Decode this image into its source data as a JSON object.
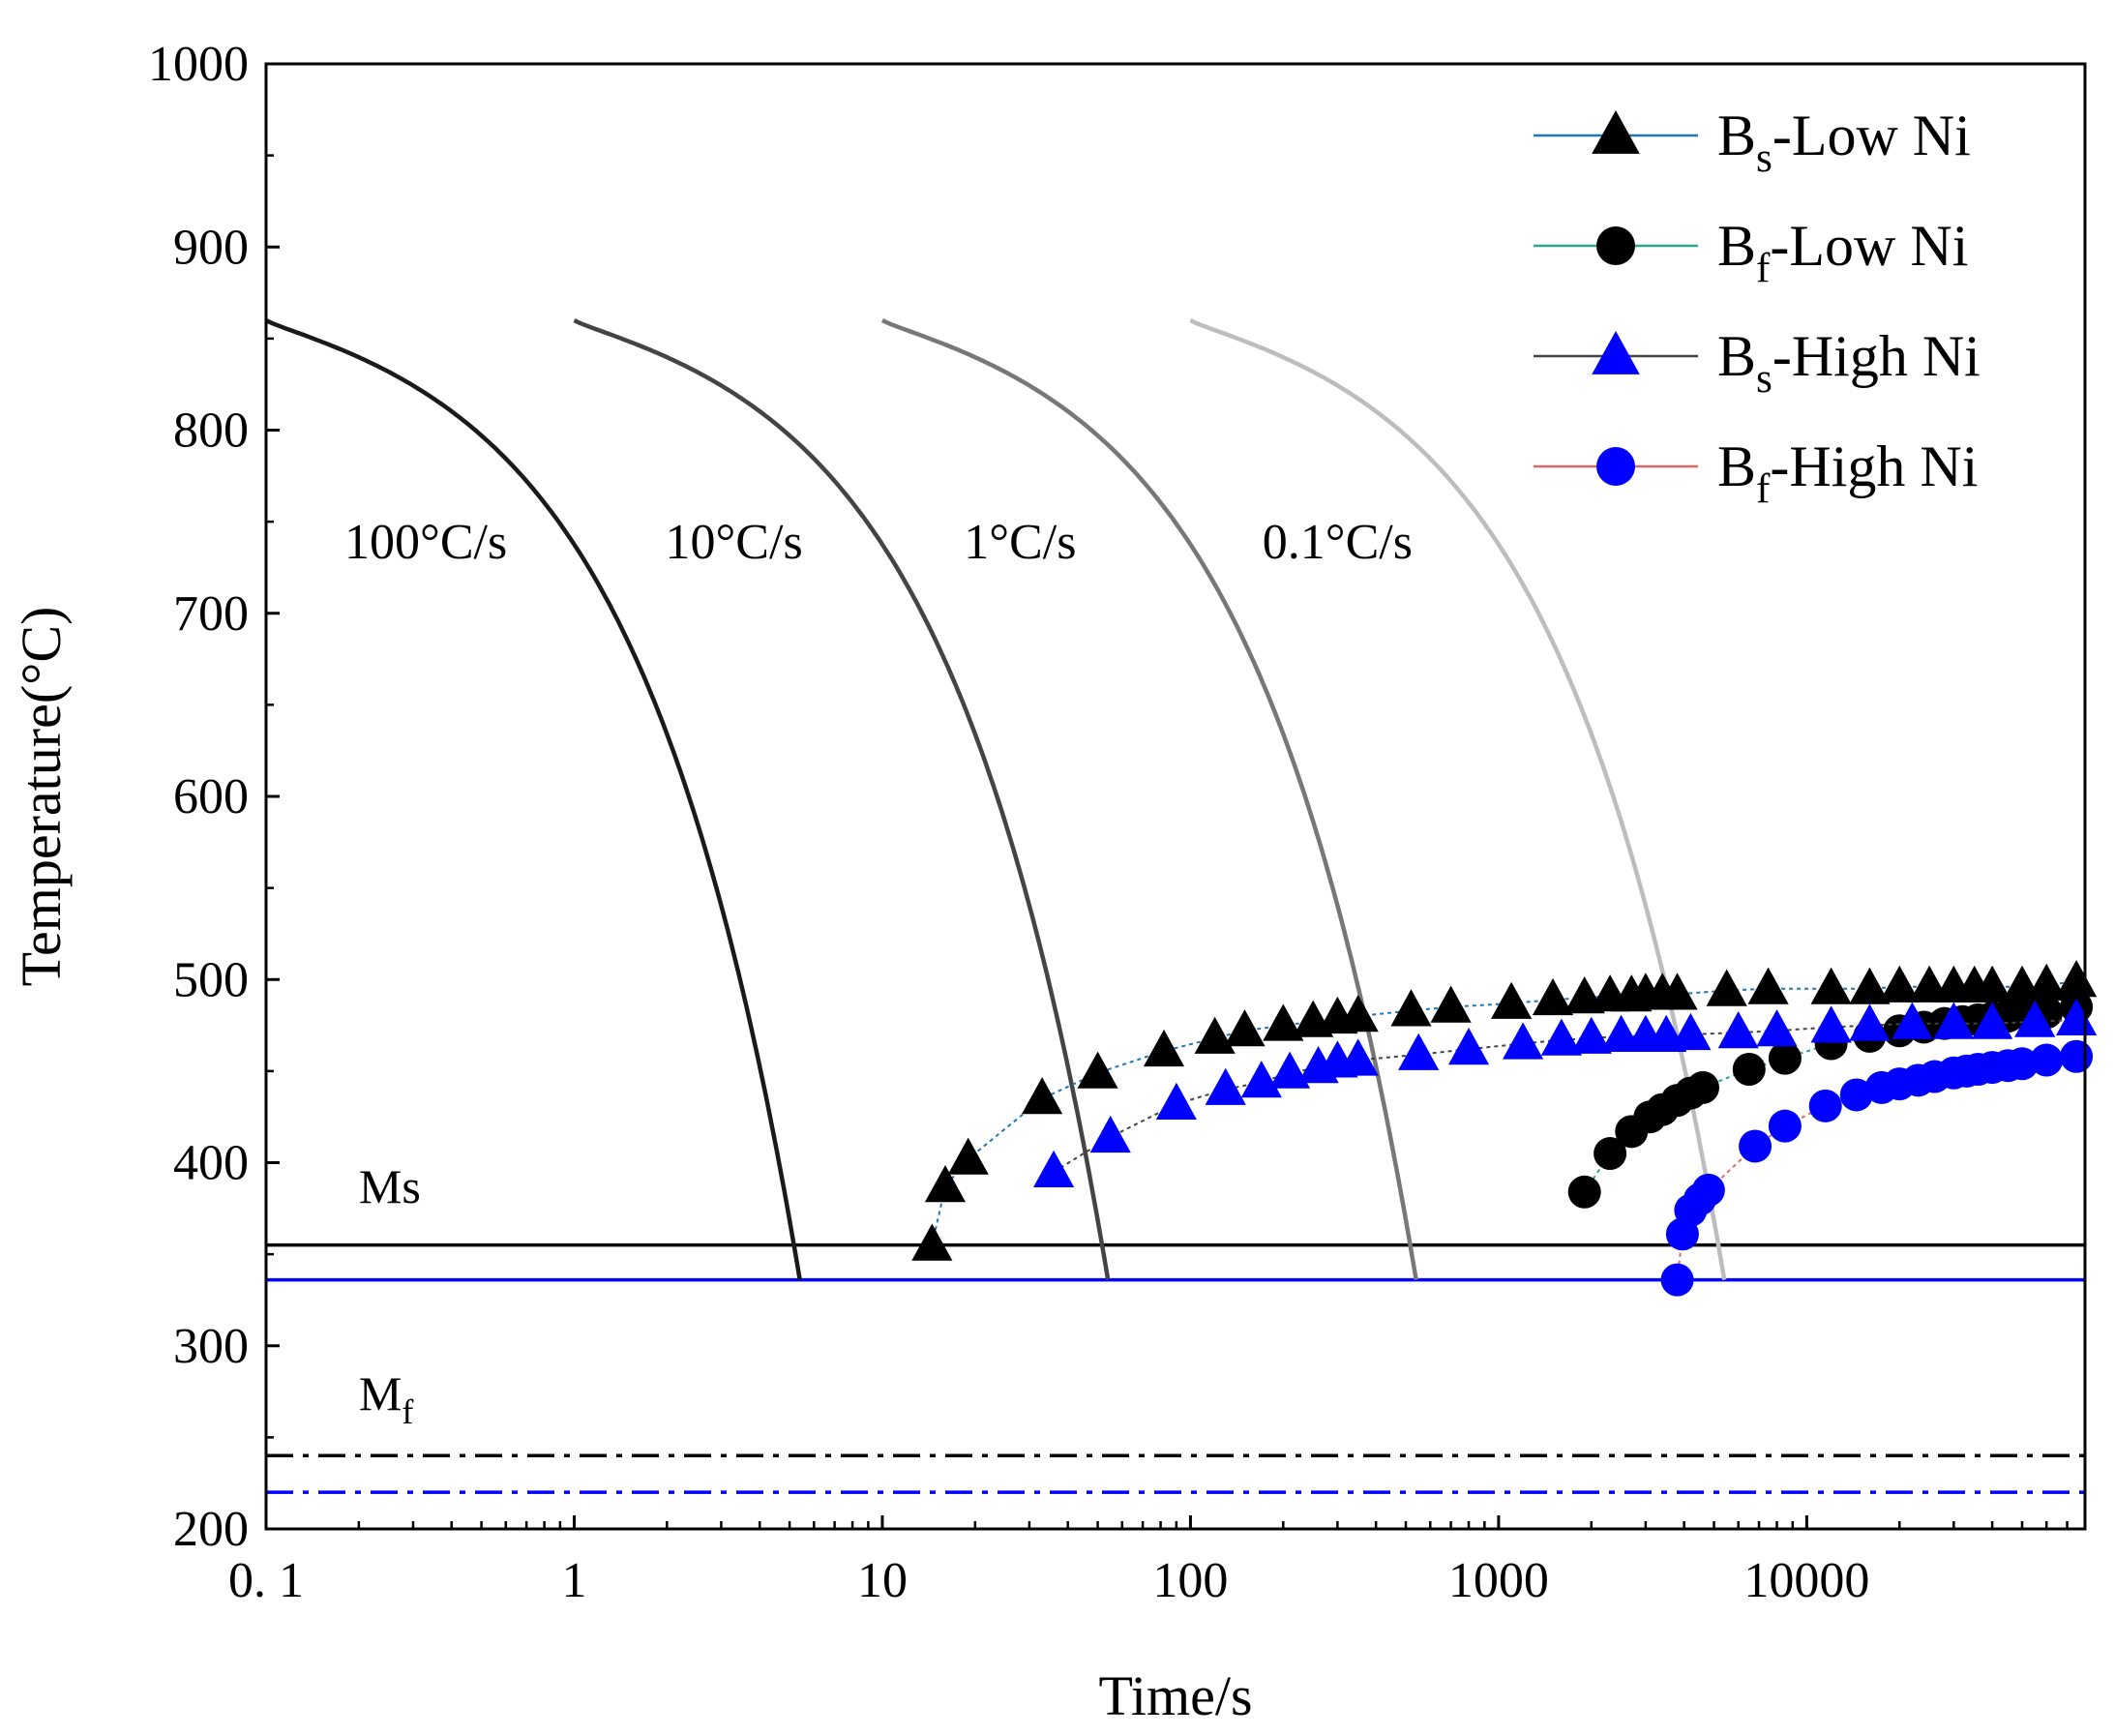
{
  "chart_data": {
    "type": "scatter",
    "title": "",
    "xlabel": "Time/s",
    "ylabel": "Temperature(°C)",
    "xscale": "log",
    "xlim": [
      0.1,
      80000
    ],
    "ylim": [
      200,
      1000
    ],
    "xticks": [
      {
        "value": 0.1,
        "label": "0. 1"
      },
      {
        "value": 1,
        "label": "1"
      },
      {
        "value": 10,
        "label": "10"
      },
      {
        "value": 100,
        "label": "100"
      },
      {
        "value": 1000,
        "label": "1000"
      },
      {
        "value": 10000,
        "label": "10000"
      }
    ],
    "yticks": [
      200,
      300,
      400,
      500,
      600,
      700,
      800,
      900,
      1000
    ],
    "legend_position": "top-right",
    "legend": [
      {
        "base": "B",
        "sub": "s",
        "rest": "-Low Ni",
        "marker": "triangle",
        "color": "#000000",
        "line_color": "#1f77b4"
      },
      {
        "base": "B",
        "sub": "f",
        "rest": "-Low Ni",
        "marker": "circle",
        "color": "#000000",
        "line_color": "#2ca58d"
      },
      {
        "base": "B",
        "sub": "s",
        "rest": "-High Ni",
        "marker": "triangle",
        "color": "#0000ff",
        "line_color": "#444444"
      },
      {
        "base": "B",
        "sub": "f",
        "rest": "-High Ni",
        "marker": "circle",
        "color": "#0000ff",
        "line_color": "#e06666"
      }
    ],
    "series": [
      {
        "name": "Bs-Low Ni",
        "marker": "triangle",
        "color": "#000000",
        "line_color": "#1f77b4",
        "points": [
          [
            14.5,
            355
          ],
          [
            16,
            387
          ],
          [
            19,
            402
          ],
          [
            33,
            435
          ],
          [
            50,
            449
          ],
          [
            82,
            461
          ],
          [
            120,
            468
          ],
          [
            150,
            472
          ],
          [
            200,
            475
          ],
          [
            250,
            477
          ],
          [
            300,
            479
          ],
          [
            350,
            480
          ],
          [
            520,
            483
          ],
          [
            700,
            485
          ],
          [
            1100,
            487
          ],
          [
            1500,
            489
          ],
          [
            1900,
            490
          ],
          [
            2300,
            491
          ],
          [
            2700,
            491
          ],
          [
            3000,
            492
          ],
          [
            3400,
            492
          ],
          [
            3800,
            492
          ],
          [
            5500,
            494
          ],
          [
            7500,
            495
          ],
          [
            12000,
            495
          ],
          [
            16000,
            495
          ],
          [
            20000,
            496
          ],
          [
            25000,
            496
          ],
          [
            30000,
            496
          ],
          [
            35000,
            496
          ],
          [
            40000,
            496
          ],
          [
            50000,
            496
          ],
          [
            60000,
            497
          ],
          [
            75000,
            499
          ]
        ]
      },
      {
        "name": "Bf-Low Ni",
        "marker": "circle",
        "color": "#000000",
        "line_color": "#2ca58d",
        "points": [
          [
            1900,
            384
          ],
          [
            2300,
            405
          ],
          [
            2700,
            417
          ],
          [
            3100,
            425
          ],
          [
            3400,
            429
          ],
          [
            3800,
            434
          ],
          [
            4200,
            438
          ],
          [
            4600,
            441
          ],
          [
            6500,
            451
          ],
          [
            8500,
            457
          ],
          [
            12000,
            465
          ],
          [
            16000,
            469
          ],
          [
            20000,
            472
          ],
          [
            24000,
            474
          ],
          [
            28000,
            476
          ],
          [
            32000,
            477
          ],
          [
            36000,
            478
          ],
          [
            40000,
            479
          ],
          [
            45000,
            480
          ],
          [
            52000,
            481
          ],
          [
            60000,
            482
          ],
          [
            75000,
            485
          ]
        ]
      },
      {
        "name": "Bs-High Ni",
        "marker": "triangle",
        "color": "#0000ff",
        "line_color": "#444444",
        "points": [
          [
            36,
            395
          ],
          [
            55,
            414
          ],
          [
            90,
            432
          ],
          [
            130,
            440
          ],
          [
            170,
            444
          ],
          [
            210,
            449
          ],
          [
            260,
            452
          ],
          [
            300,
            455
          ],
          [
            350,
            456
          ],
          [
            550,
            459
          ],
          [
            800,
            462
          ],
          [
            1200,
            465
          ],
          [
            1600,
            467
          ],
          [
            2000,
            468
          ],
          [
            2500,
            469
          ],
          [
            3000,
            469
          ],
          [
            3500,
            469
          ],
          [
            4200,
            470
          ],
          [
            6000,
            471
          ],
          [
            8000,
            472
          ],
          [
            12000,
            474
          ],
          [
            16000,
            475
          ],
          [
            22000,
            476
          ],
          [
            30000,
            476
          ],
          [
            40000,
            476
          ],
          [
            55000,
            477
          ],
          [
            75000,
            478
          ]
        ]
      },
      {
        "name": "Bf-High Ni",
        "marker": "circle",
        "color": "#0000ff",
        "line_color": "#e06666",
        "points": [
          [
            3800,
            336
          ],
          [
            3950,
            361
          ],
          [
            4200,
            374
          ],
          [
            4500,
            380
          ],
          [
            4800,
            385
          ],
          [
            6800,
            409
          ],
          [
            8500,
            420
          ],
          [
            11500,
            431
          ],
          [
            14500,
            437
          ],
          [
            17500,
            441
          ],
          [
            20000,
            443
          ],
          [
            23000,
            445
          ],
          [
            26000,
            447
          ],
          [
            30000,
            449
          ],
          [
            33000,
            450
          ],
          [
            36000,
            451
          ],
          [
            40000,
            452
          ],
          [
            45000,
            453
          ],
          [
            50000,
            454
          ],
          [
            60000,
            456
          ],
          [
            75000,
            458
          ]
        ]
      }
    ],
    "cooling_curves": [
      {
        "label": "100°C/s",
        "start_time": 0.1,
        "label_time": 0.33,
        "label_temp": 730,
        "color": "#1a1a1a"
      },
      {
        "label": "10°C/s",
        "start_time": 1.0,
        "label_time": 3.3,
        "label_temp": 730,
        "color": "#444444"
      },
      {
        "label": "1°C/s",
        "start_time": 10.0,
        "label_time": 28,
        "label_temp": 730,
        "color": "#777777"
      },
      {
        "label": "0.1°C/s",
        "start_time": 100.0,
        "label_time": 300,
        "label_temp": 730,
        "color": "#bdbdbd"
      }
    ],
    "reference_lines": [
      {
        "name": "Ms Low Ni",
        "temp": 355,
        "style": "solid",
        "color": "#000000"
      },
      {
        "name": "Ms High Ni",
        "temp": 336,
        "style": "solid",
        "color": "#0000ff"
      },
      {
        "name": "Mf Low Ni",
        "temp": 240,
        "style": "dashdot",
        "color": "#000000"
      },
      {
        "name": "Mf High Ni",
        "temp": 220,
        "style": "dashdot",
        "color": "#0000ff"
      }
    ],
    "annotations": [
      {
        "text": "Ms",
        "time": 0.2,
        "temp": 378
      },
      {
        "text": "M",
        "sub": "f",
        "time": 0.2,
        "temp": 265
      }
    ]
  }
}
